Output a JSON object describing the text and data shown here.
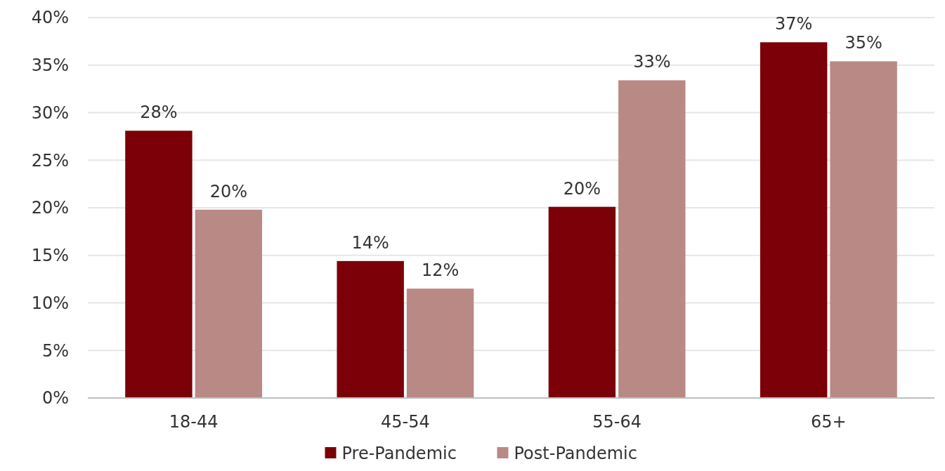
{
  "chart_data": {
    "type": "bar",
    "categories": [
      "18-44",
      "45-54",
      "55-64",
      "65+"
    ],
    "series": [
      {
        "name": "Pre-Pandemic",
        "color": "#7b0008",
        "values": [
          28.1,
          14.4,
          20.1,
          37.4
        ],
        "value_labels": [
          "28%",
          "14%",
          "20%",
          "37%"
        ]
      },
      {
        "name": "Post-Pandemic",
        "color": "#b98985",
        "values": [
          19.8,
          11.5,
          33.4,
          35.4
        ],
        "value_labels": [
          "20%",
          "12%",
          "33%",
          "35%"
        ]
      }
    ],
    "ylim": [
      0,
      40
    ],
    "yticks": [
      {
        "value": 0,
        "label": "0%"
      },
      {
        "value": 5,
        "label": "5%"
      },
      {
        "value": 10,
        "label": "10%"
      },
      {
        "value": 15,
        "label": "15%"
      },
      {
        "value": 20,
        "label": "20%"
      },
      {
        "value": 25,
        "label": "25%"
      },
      {
        "value": 30,
        "label": "30%"
      },
      {
        "value": 35,
        "label": "35%"
      },
      {
        "value": 40,
        "label": "40%"
      }
    ],
    "grid": "y",
    "legend": "bottom"
  }
}
